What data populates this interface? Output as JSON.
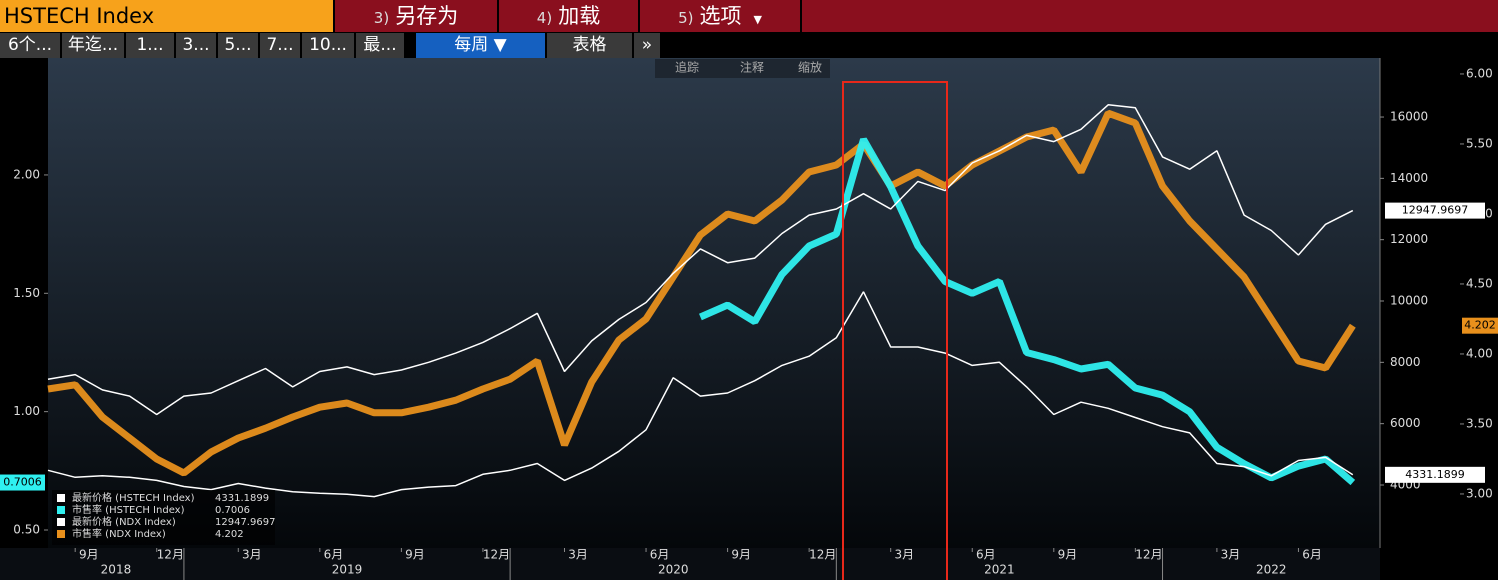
{
  "toolbar": {
    "security": "HSTECH Index",
    "buttons": [
      {
        "num": "3)",
        "label": "另存为"
      },
      {
        "num": "4)",
        "label": "加载"
      },
      {
        "num": "5)",
        "label": "选项"
      }
    ],
    "periods": [
      "6个...",
      "年迄...",
      "1...",
      "3...",
      "5...",
      "7...",
      "10...",
      "最..."
    ],
    "frequency": "每周 ▼",
    "table": "表格",
    "more": "»"
  },
  "chart_tools": [
    "追踪",
    "注释",
    "缩放"
  ],
  "chart_data": {
    "type": "line",
    "x": [
      "2018-08",
      "2018-09",
      "2018-10",
      "2018-11",
      "2018-12",
      "2019-01",
      "2019-02",
      "2019-03",
      "2019-04",
      "2019-05",
      "2019-06",
      "2019-07",
      "2019-08",
      "2019-09",
      "2019-10",
      "2019-11",
      "2019-12",
      "2020-01",
      "2020-02",
      "2020-03",
      "2020-04",
      "2020-05",
      "2020-06",
      "2020-07",
      "2020-08",
      "2020-09",
      "2020-10",
      "2020-11",
      "2020-12",
      "2021-01",
      "2021-02",
      "2021-03",
      "2021-04",
      "2021-05",
      "2021-06",
      "2021-07",
      "2021-08",
      "2021-09",
      "2021-10",
      "2021-11",
      "2021-12",
      "2022-01",
      "2022-02",
      "2022-03",
      "2022-04",
      "2022-05",
      "2022-06",
      "2022-07",
      "2022-08"
    ],
    "xlim": [
      "2018-08",
      "2022-09"
    ],
    "xticks": [
      {
        "value": "2018-09",
        "label": "9月"
      },
      {
        "value": "2018-12",
        "label": "12月"
      },
      {
        "value": "2019-03",
        "label": "3月"
      },
      {
        "value": "2019-06",
        "label": "6月"
      },
      {
        "value": "2019-09",
        "label": "9月"
      },
      {
        "value": "2019-12",
        "label": "12月"
      },
      {
        "value": "2020-03",
        "label": "3月"
      },
      {
        "value": "2020-06",
        "label": "6月"
      },
      {
        "value": "2020-09",
        "label": "9月"
      },
      {
        "value": "2020-12",
        "label": "12月"
      },
      {
        "value": "2021-03",
        "label": "3月"
      },
      {
        "value": "2021-06",
        "label": "6月"
      },
      {
        "value": "2021-09",
        "label": "9月"
      },
      {
        "value": "2021-12",
        "label": "12月"
      },
      {
        "value": "2022-03",
        "label": "3月"
      },
      {
        "value": "2022-06",
        "label": "6月"
      }
    ],
    "year_labels": [
      "2018",
      "2019",
      "2020",
      "2021",
      "2022"
    ],
    "ylim": [
      0.424,
      2.494
    ],
    "yticks": [
      {
        "value": 0.5,
        "label": "0.50"
      },
      {
        "value": 1,
        "label": "1.00"
      },
      {
        "value": 1.5,
        "label": "1.50"
      },
      {
        "value": 2,
        "label": "2.00"
      }
    ],
    "y2lim": [
      1945,
      17925
    ],
    "y2ticks": [
      4000,
      6000,
      8000,
      10000,
      12000,
      14000,
      16000
    ],
    "y3lim": [
      2.614,
      6.114
    ],
    "y3ticks": [
      {
        "value": 3,
        "label": "3.00"
      },
      {
        "value": 3.5,
        "label": "3.50"
      },
      {
        "value": 4,
        "label": "4.00"
      },
      {
        "value": 4.5,
        "label": "4.50"
      },
      {
        "value": 5,
        "label": "5.00"
      },
      {
        "value": 5.5,
        "label": "5.50"
      },
      {
        "value": 6,
        "label": "6.00"
      }
    ],
    "grid": false,
    "series": [
      {
        "name": "最新价格 (HSTECH Index)",
        "color": "#ffffff",
        "axis": "y2",
        "style": "thin",
        "last_label": "4331.1899",
        "values": [
          4480,
          4250,
          4300,
          4250,
          4150,
          3950,
          3850,
          4050,
          3900,
          3780,
          3730,
          3700,
          3620,
          3850,
          3930,
          3980,
          4350,
          4480,
          4700,
          4150,
          4550,
          5100,
          5800,
          7500,
          6900,
          7000,
          7400,
          7900,
          8200,
          8800,
          10300,
          8500,
          8500,
          8300,
          7900,
          8000,
          7200,
          6300,
          6700,
          6500,
          6200,
          5900,
          5700,
          4700,
          4600,
          4300,
          4800,
          4900,
          4331.1899
        ]
      },
      {
        "name": "市售率 (HSTECH Index)",
        "color": "#2ff0f0",
        "axis": "y",
        "style": "thick",
        "last_label": "0.7006",
        "values": [
          null,
          null,
          null,
          null,
          null,
          null,
          null,
          null,
          null,
          null,
          null,
          null,
          null,
          null,
          null,
          null,
          null,
          null,
          null,
          null,
          null,
          null,
          null,
          null,
          1.4,
          1.45,
          1.38,
          1.58,
          1.7,
          1.75,
          2.15,
          1.95,
          1.7,
          1.55,
          1.5,
          1.55,
          1.25,
          1.22,
          1.18,
          1.2,
          1.1,
          1.07,
          1.0,
          0.85,
          0.78,
          0.72,
          0.77,
          0.8,
          0.7006
        ]
      },
      {
        "name": "最新价格 (NDX Index)",
        "color": "#ffffff",
        "axis": "y2",
        "style": "thin",
        "last_label": "12947.9697",
        "values": [
          7450,
          7600,
          7100,
          6900,
          6300,
          6900,
          7000,
          7400,
          7800,
          7200,
          7700,
          7850,
          7600,
          7750,
          8000,
          8300,
          8650,
          9100,
          9600,
          7700,
          8700,
          9400,
          9950,
          10900,
          11700,
          11250,
          11400,
          12200,
          12800,
          13000,
          13500,
          13000,
          13900,
          13600,
          14500,
          14900,
          15400,
          15200,
          15600,
          16400,
          16300,
          14700,
          14300,
          14900,
          12800,
          12300,
          11500,
          12500,
          12947.9697
        ]
      },
      {
        "name": "市售率 (NDX Index)",
        "color": "#e8901c",
        "axis": "y3",
        "style": "thick",
        "last_label": "4.202",
        "values": [
          3.75,
          3.78,
          3.55,
          3.4,
          3.25,
          3.15,
          3.3,
          3.4,
          3.47,
          3.55,
          3.62,
          3.65,
          3.58,
          3.58,
          3.62,
          3.67,
          3.75,
          3.82,
          3.95,
          3.35,
          3.8,
          4.1,
          4.25,
          4.55,
          4.85,
          5.0,
          4.95,
          5.1,
          5.3,
          5.35,
          5.5,
          5.2,
          5.3,
          5.2,
          5.35,
          5.45,
          5.55,
          5.6,
          5.3,
          5.72,
          5.65,
          5.2,
          4.95,
          4.75,
          4.55,
          4.25,
          3.95,
          3.9,
          4.202
        ]
      }
    ]
  }
}
